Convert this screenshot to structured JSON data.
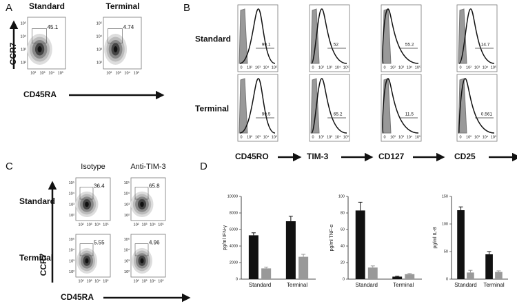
{
  "panel_a": {
    "label": "A",
    "columns": [
      "Standard",
      "Terminal"
    ],
    "gates": [
      45.1,
      4.74
    ],
    "y_axis": "CCR7",
    "x_axis": "CD45RA",
    "y_ticks": [
      "10⁵",
      "10⁴",
      "10³",
      "10²"
    ],
    "x_ticks": [
      "10²",
      "10³",
      "10⁴",
      "10⁵"
    ]
  },
  "panel_b": {
    "label": "B",
    "rows": [
      "Standard",
      "Terminal"
    ],
    "markers": [
      "CD45RO",
      "TIM-3",
      "CD127",
      "CD25"
    ],
    "gates": [
      [
        99.1,
        52,
        55.2,
        14.7
      ],
      [
        99.5,
        65.2,
        11.5,
        0.561
      ]
    ],
    "x_ticks": [
      "0",
      "10²",
      "10³",
      "10⁴",
      "10⁵"
    ]
  },
  "panel_c": {
    "label": "C",
    "columns": [
      "Isotype",
      "Anti-TIM-3"
    ],
    "rows": [
      "Standard",
      "Terminal"
    ],
    "gates": [
      [
        36.4,
        65.8
      ],
      [
        5.55,
        4.96
      ]
    ],
    "y_axis": "CCR7",
    "x_axis": "CD45RA",
    "y_ticks": [
      "10⁵",
      "10⁴",
      "10³",
      "10²"
    ],
    "x_ticks": [
      "10²",
      "10³",
      "10⁴",
      "10⁵"
    ]
  },
  "panel_d": {
    "label": "D"
  },
  "chart_data": [
    {
      "type": "bar",
      "y_label": "pg/ml IFN-γ",
      "categories": [
        "Standard",
        "Terminal"
      ],
      "ylim": [
        0,
        10000
      ],
      "yticks": [
        0,
        2000,
        4000,
        6000,
        8000,
        10000
      ],
      "series": [
        {
          "color": "#111111",
          "values": [
            5300,
            7000
          ],
          "errors": [
            300,
            600
          ]
        },
        {
          "color": "#999999",
          "values": [
            1300,
            2700
          ],
          "errors": [
            150,
            300
          ]
        }
      ]
    },
    {
      "type": "bar",
      "y_label": "pg/ml TNF-α",
      "categories": [
        "Standard",
        "Terminal"
      ],
      "ylim": [
        0,
        100
      ],
      "yticks": [
        0,
        20,
        40,
        60,
        80,
        100
      ],
      "series": [
        {
          "color": "#111111",
          "values": [
            83,
            3
          ],
          "errors": [
            10,
            0.5
          ]
        },
        {
          "color": "#999999",
          "values": [
            14,
            6
          ],
          "errors": [
            2,
            0.8
          ]
        }
      ]
    },
    {
      "type": "bar",
      "y_label": "pg/ml IL-8",
      "categories": [
        "Standard",
        "Terminal"
      ],
      "ylim": [
        0,
        150
      ],
      "yticks": [
        0,
        50,
        100,
        150
      ],
      "series": [
        {
          "color": "#111111",
          "values": [
            125,
            45
          ],
          "errors": [
            6,
            5
          ]
        },
        {
          "color": "#999999",
          "values": [
            12,
            13
          ],
          "errors": [
            4,
            2
          ]
        }
      ]
    }
  ]
}
